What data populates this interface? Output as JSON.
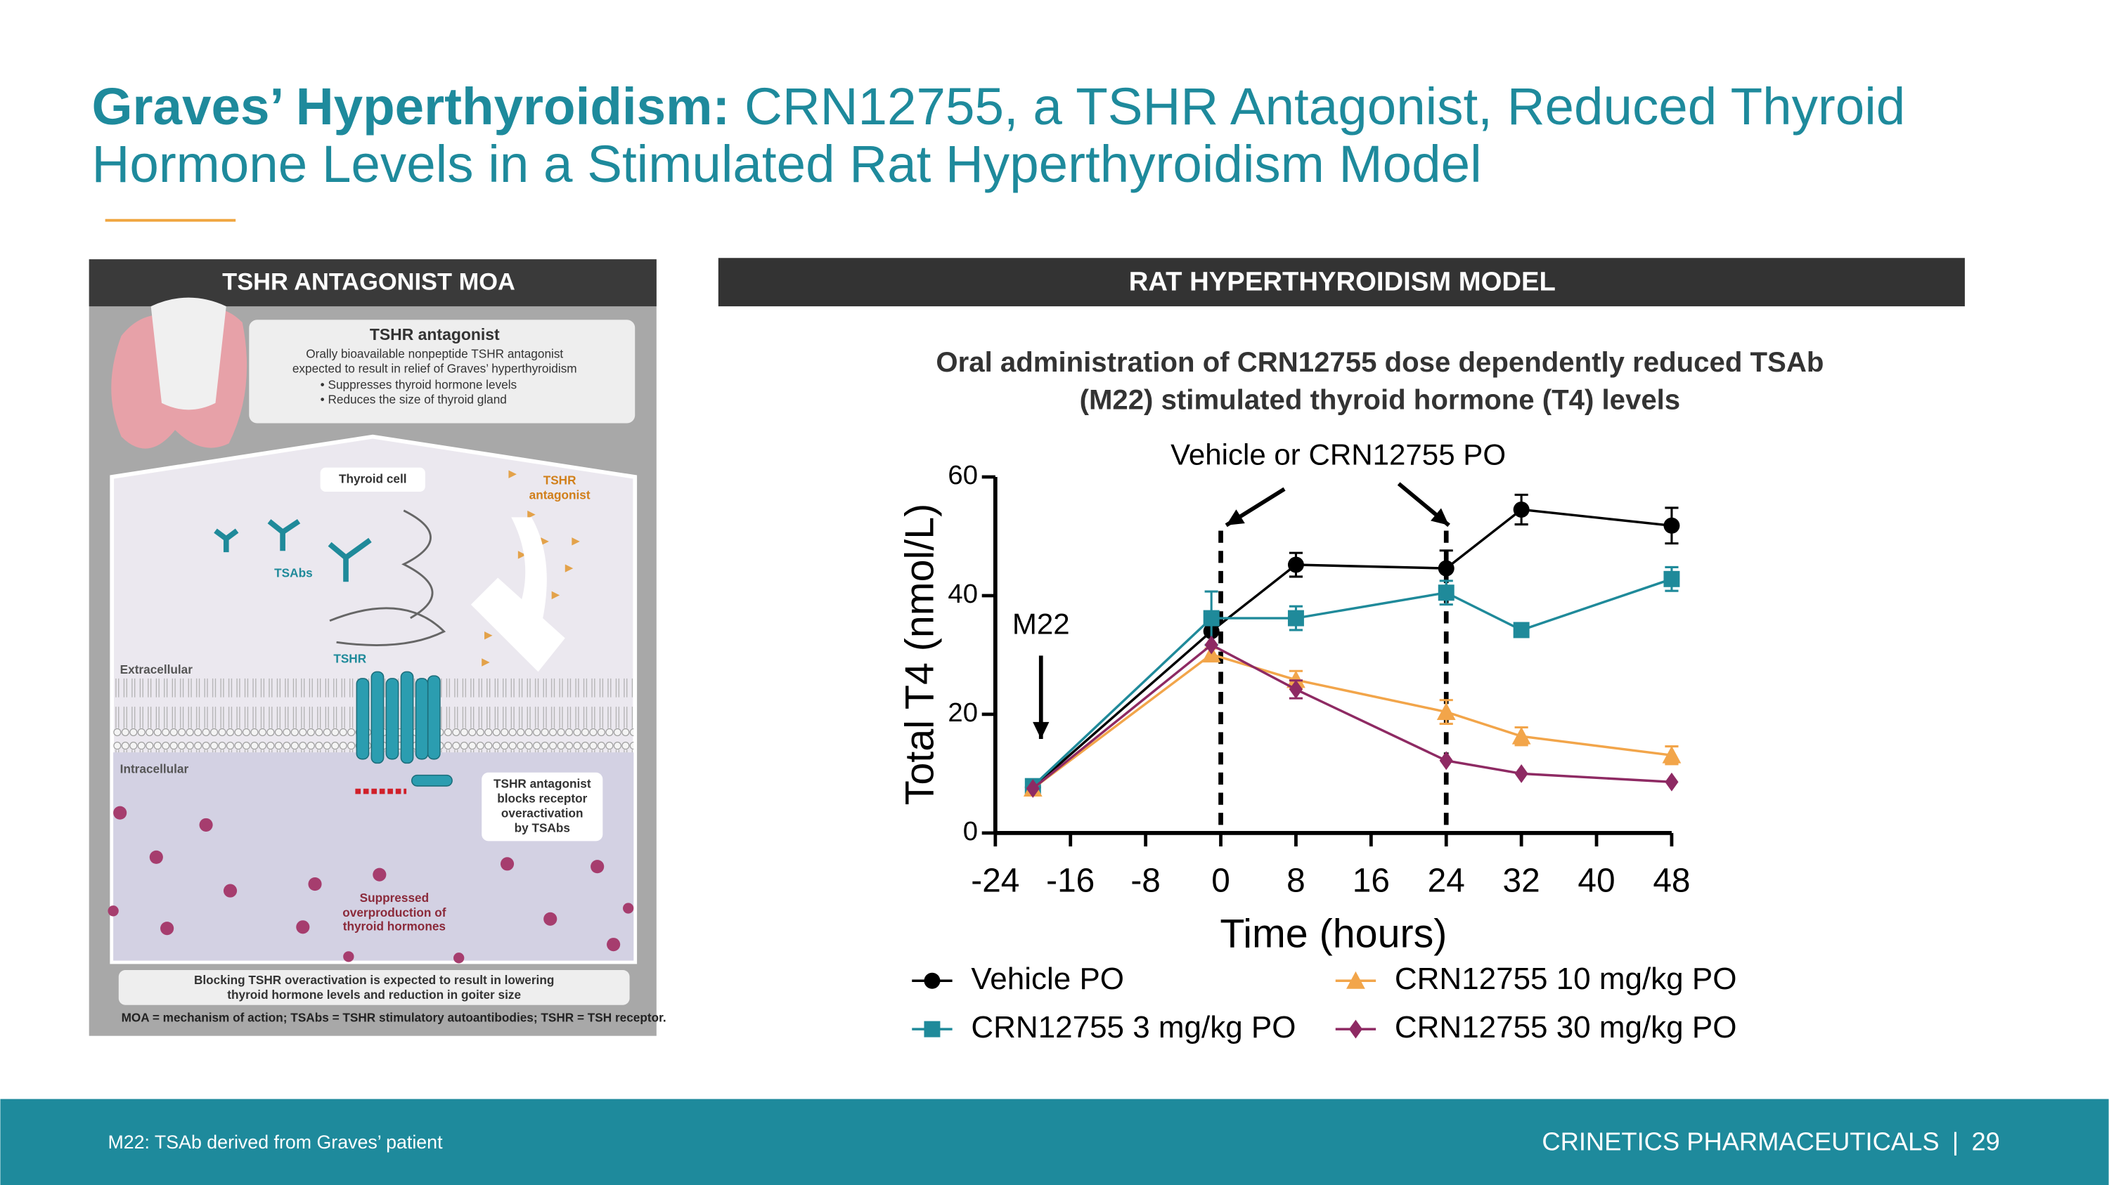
{
  "header": {
    "bold": "Graves’ Hyperthyroidism:",
    "line1": "CRN12755, a TSHR Antagonist, Reduced Thyroid",
    "line2": "Hormone Levels in a Stimulated Rat Hyperthyroidism Model"
  },
  "moa": {
    "title": "TSHR ANTAGONIST MOA",
    "box_title": "TSHR antagonist",
    "box_lines": [
      "Orally bioavailable nonpeptide TSHR antagonist",
      "expected to result in relief of Graves’ hyperthyroidism"
    ],
    "bullets": [
      "• Suppresses thyroid hormone levels",
      "• Reduces the size of thyroid gland"
    ],
    "thyroid_cell": "Thyroid cell",
    "antagonist_label": [
      "TSHR",
      "antagonist"
    ],
    "tsabs": "TSAbs",
    "tshr": "TSHR",
    "extracellular": "Extracellular",
    "intracellular": "Intracellular",
    "blocks_note": [
      "TSHR antagonist",
      "blocks receptor",
      "overactivation",
      "by TSAbs"
    ],
    "suppressed": [
      "Suppressed",
      "overproduction of",
      "thyroid hormones"
    ],
    "bottom_note": [
      "Blocking TSHR overactivation is expected to result in lowering",
      "thyroid hormone levels and reduction in goiter size"
    ],
    "footnote": "MOA = mechanism of action; TSAbs = TSHR stimulatory autoantibodies; TSHR = TSH receptor."
  },
  "model": {
    "title": "RAT HYPERTHYROIDISM MODEL"
  },
  "chart_data": {
    "type": "line",
    "title": [
      "Oral administration of CRN12755 dose dependently reduced TSAb",
      "(M22) stimulated thyroid hormone (T4) levels"
    ],
    "x_label": "Time (hours)",
    "y_label": "Total T4 (nmol/L)",
    "annotations": {
      "dosing": "Vehicle or CRN12755 PO",
      "m22": "M22"
    },
    "vlines": [
      0,
      24
    ],
    "m22_x": -20,
    "x": [
      -20,
      -1,
      8,
      24,
      32,
      48
    ],
    "xlim": [
      -24,
      48
    ],
    "xticks": [
      -24,
      -16,
      -8,
      0,
      8,
      16,
      24,
      32,
      40,
      48
    ],
    "ylim": [
      0,
      60
    ],
    "yticks": [
      0,
      20,
      40,
      60
    ],
    "series": [
      {
        "name": "Vehicle PO",
        "color": "#000000",
        "marker": "circle",
        "values": [
          7.7,
          34,
          45.2,
          44.6,
          54.5,
          51.8
        ],
        "errors": [
          null,
          null,
          2,
          3,
          2.5,
          3
        ]
      },
      {
        "name": "CRN12755 3 mg/kg PO",
        "color": "#1f8a9a",
        "marker": "square",
        "values": [
          7.9,
          36.2,
          36.2,
          40.5,
          34.2,
          42.8
        ],
        "errors": [
          null,
          4.5,
          2,
          2,
          null,
          2
        ]
      },
      {
        "name": "CRN12755 10 mg/kg PO",
        "color": "#f2a54a",
        "marker": "triangle",
        "values": [
          7.5,
          30.1,
          25.8,
          20.4,
          16.3,
          13.1
        ],
        "errors": [
          null,
          1,
          1.5,
          2,
          1.5,
          1.5
        ]
      },
      {
        "name": "CRN12755 30 mg/kg PO",
        "color": "#8e2a63",
        "marker": "diamond",
        "values": [
          7.5,
          31.7,
          24.2,
          12.2,
          10,
          8.6
        ],
        "errors": [
          null,
          null,
          1.5,
          null,
          null,
          null
        ]
      }
    ]
  },
  "footer": {
    "note": "M22: TSAb derived from Graves’ patient",
    "brand": "CRINETICS PHARMACEUTICALS",
    "separator": "|",
    "page": "29"
  }
}
